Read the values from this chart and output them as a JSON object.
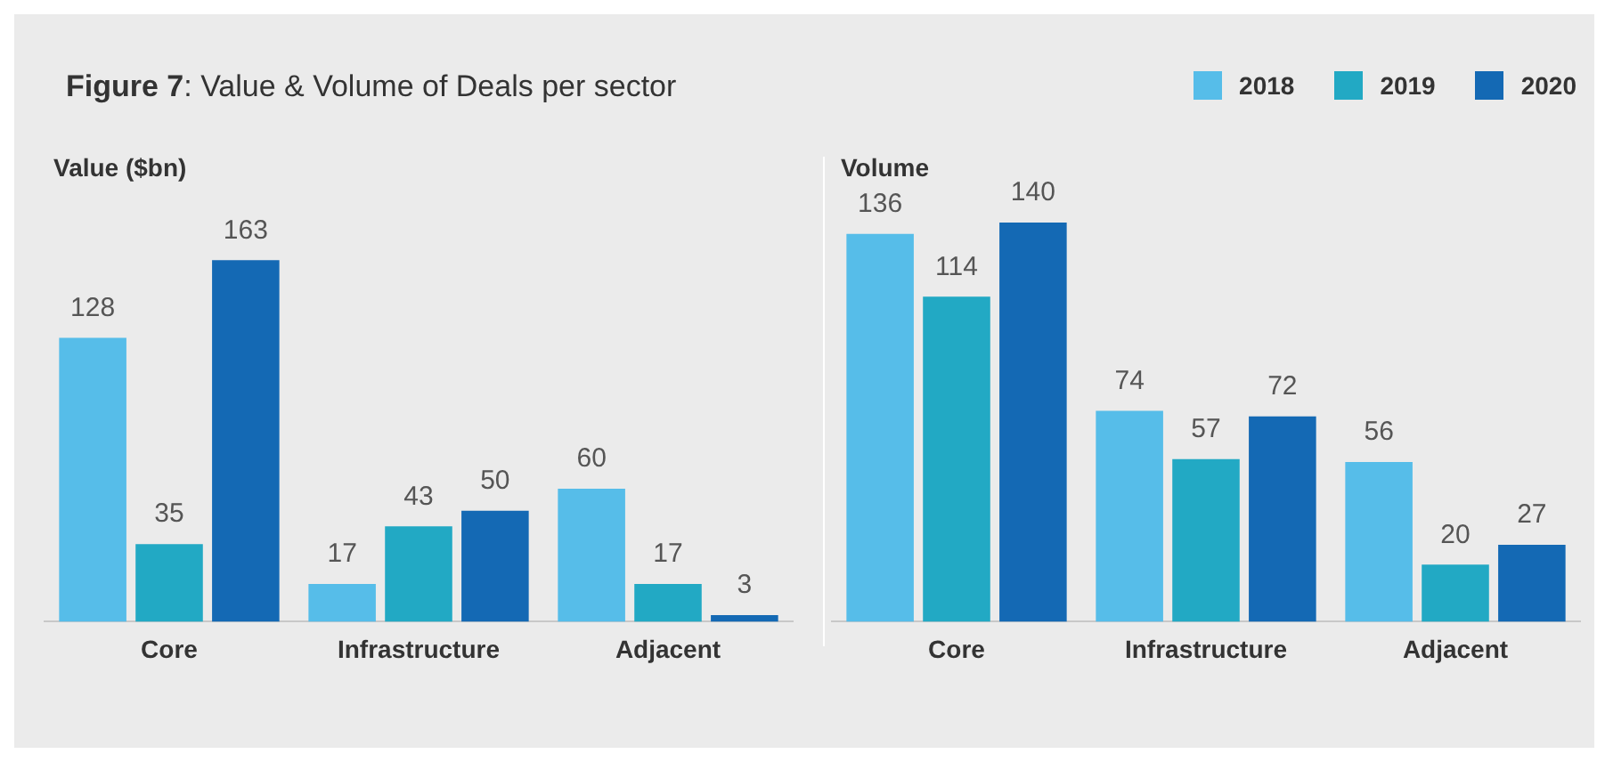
{
  "chart_data": [
    {
      "type": "bar",
      "title": "Figure 7: Value & Volume of Deals per sector",
      "ylabel": "Value ($bn)",
      "categories": [
        "Core",
        "Infrastructure",
        "Adjacent"
      ],
      "tick_labels": "x",
      "legend": "top right",
      "data_labels": true,
      "series": [
        {
          "name": "2018",
          "color": "#56bde9",
          "values": [
            128,
            17,
            60
          ]
        },
        {
          "name": "2019",
          "color": "#22a9c4",
          "values": [
            35,
            43,
            17
          ]
        },
        {
          "name": "2020",
          "color": "#1469b4",
          "values": [
            163,
            50,
            3
          ]
        }
      ]
    },
    {
      "type": "bar",
      "ylabel": "Volume",
      "categories": [
        "Core",
        "Infrastructure",
        "Adjacent"
      ],
      "tick_labels": "x",
      "data_labels": true,
      "series": [
        {
          "name": "2018",
          "color": "#56bde9",
          "values": [
            136,
            74,
            56
          ]
        },
        {
          "name": "2019",
          "color": "#22a9c4",
          "values": [
            114,
            57,
            20
          ]
        },
        {
          "name": "2020",
          "color": "#1469b4",
          "values": [
            140,
            72,
            27
          ]
        }
      ]
    }
  ]
}
